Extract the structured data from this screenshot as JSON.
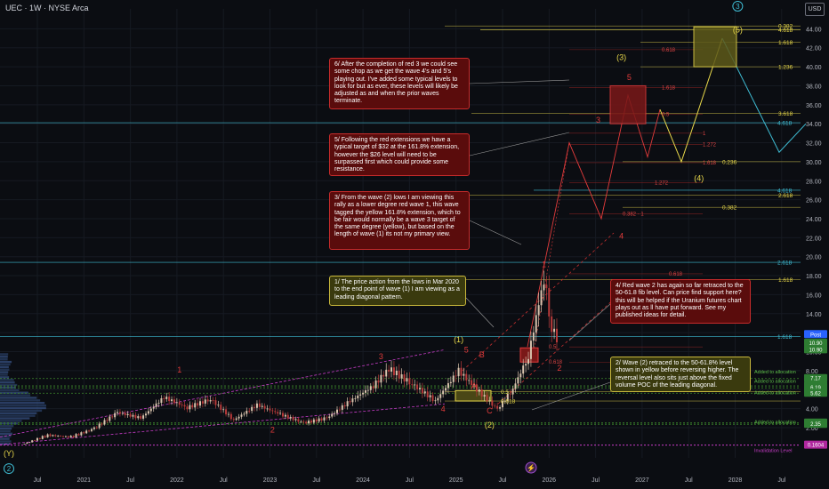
{
  "header": {
    "ticker_line": "UEC · 1W · NYSE Arca",
    "currency": "USD"
  },
  "colors": {
    "bg": "#0b0d12",
    "red": "#e23b3b",
    "yellow": "#e8d84a",
    "cyan": "#3fbdd4",
    "green": "#7fcf57",
    "magenta": "#c83cc8",
    "candle_up": "#d8c3ad",
    "candle_down": "#b83a3a"
  },
  "chart_data": {
    "type": "line",
    "x_axis_labels": [
      "Jul",
      "2021",
      "Jul",
      "2022",
      "Jul",
      "2023",
      "Jul",
      "2024",
      "Jul",
      "2025",
      "Jul",
      "2026",
      "Jul",
      "2027",
      "Jul",
      "2028",
      "Jul"
    ],
    "y_ticks": [
      2,
      4,
      6,
      8,
      10,
      12,
      14,
      16,
      18,
      20,
      22,
      24,
      26,
      28,
      30,
      32,
      34,
      36,
      38,
      40,
      42,
      44
    ],
    "ylim": [
      0,
      45
    ],
    "price_series": [
      {
        "x": "2020-03",
        "y": 0.3
      },
      {
        "x": "2020-06",
        "y": 1.2
      },
      {
        "x": "2020-09",
        "y": 1.0
      },
      {
        "x": "2020-12",
        "y": 1.9
      },
      {
        "x": "2021-03",
        "y": 3.6
      },
      {
        "x": "2021-06",
        "y": 3.0
      },
      {
        "x": "2021-09",
        "y": 5.2
      },
      {
        "x": "2021-12",
        "y": 4.1
      },
      {
        "x": "2022-03",
        "y": 5.0
      },
      {
        "x": "2022-06",
        "y": 2.8
      },
      {
        "x": "2022-09",
        "y": 4.4
      },
      {
        "x": "2022-12",
        "y": 3.4
      },
      {
        "x": "2023-03",
        "y": 2.5
      },
      {
        "x": "2023-06",
        "y": 3.0
      },
      {
        "x": "2023-09",
        "y": 4.8
      },
      {
        "x": "2023-12",
        "y": 6.4
      },
      {
        "x": "2024-02",
        "y": 8.2
      },
      {
        "x": "2024-05",
        "y": 6.6
      },
      {
        "x": "2024-08",
        "y": 4.8
      },
      {
        "x": "2024-11",
        "y": 8.0
      },
      {
        "x": "2025-01",
        "y": 6.3
      },
      {
        "x": "2025-04",
        "y": 3.9
      },
      {
        "x": "2025-06",
        "y": 6.1
      },
      {
        "x": "2025-08",
        "y": 9.5
      },
      {
        "x": "2025-10",
        "y": 17.8
      },
      {
        "x": "2025-11",
        "y": 12.5
      },
      {
        "x": "2025-12",
        "y": 10.9
      }
    ],
    "fib_labels": [
      {
        "text": "0.382",
        "y": 44.3,
        "color": "yellow"
      },
      {
        "text": "4.618",
        "y": 43.9,
        "color": "yellow"
      },
      {
        "text": "1.618",
        "y": 42.6,
        "color": "yellow"
      },
      {
        "text": "1.236",
        "y": 40.0,
        "color": "yellow"
      },
      {
        "text": "3.618",
        "y": 35.1,
        "color": "yellow"
      },
      {
        "text": "4.618",
        "y": 34.1,
        "color": "cyan"
      },
      {
        "text": "0.236",
        "y": 30.0,
        "color": "yellow"
      },
      {
        "text": "4.618",
        "y": 27.0,
        "color": "cyan"
      },
      {
        "text": "2.618",
        "y": 26.5,
        "color": "yellow"
      },
      {
        "text": "0.382",
        "y": 25.2,
        "color": "yellow"
      },
      {
        "text": "2.618",
        "y": 19.4,
        "color": "cyan"
      },
      {
        "text": "1.618",
        "y": 17.6,
        "color": "yellow"
      },
      {
        "text": "1.618",
        "y": 11.6,
        "color": "cyan"
      },
      {
        "text": "0.5",
        "y": 5.8,
        "color": "yellow"
      },
      {
        "text": "0.618",
        "y": 4.8,
        "color": "yellow"
      }
    ],
    "red_fib_labels": [
      {
        "text": "0.618",
        "y": 41.8
      },
      {
        "text": "1.618",
        "y": 37.8
      },
      {
        "text": "0.5",
        "y": 35.0
      },
      {
        "text": "1",
        "y": 33.0
      },
      {
        "text": "1.272",
        "y": 31.8
      },
      {
        "text": "1.618",
        "y": 29.9
      },
      {
        "text": "1.272",
        "y": 27.8
      },
      {
        "text": "0.382 - 1",
        "y": 24.5
      },
      {
        "text": "0.618",
        "y": 18.2
      },
      {
        "text": "0.5",
        "y": 10.5
      },
      {
        "text": "0.618",
        "y": 8.9
      }
    ],
    "wave_labels": [
      {
        "text": "1",
        "x": "2021-11",
        "y": 7.8,
        "color": "red"
      },
      {
        "text": "2",
        "x": "2022-11",
        "y": 1.5,
        "color": "red"
      },
      {
        "text": "3",
        "x": "2024-01",
        "y": 9.2,
        "color": "red"
      },
      {
        "text": "4",
        "x": "2024-09",
        "y": 3.7,
        "color": "red"
      },
      {
        "text": "5",
        "x": "2024-12",
        "y": 9.9,
        "color": "red"
      },
      {
        "text": "B",
        "x": "2025-02",
        "y": 9.4,
        "color": "red"
      },
      {
        "text": "A",
        "x": "2025-01",
        "y": 6.1,
        "color": "red"
      },
      {
        "text": "C",
        "x": "2025-03",
        "y": 3.5,
        "color": "red"
      },
      {
        "text": "1",
        "x": "2025-10",
        "y": 18.9,
        "color": "red"
      },
      {
        "text": "2",
        "x": "2025-12",
        "y": 8.0,
        "color": "red"
      },
      {
        "text": "3",
        "x": "2026-05",
        "y": 34.1,
        "color": "red"
      },
      {
        "text": "4",
        "x": "2026-08",
        "y": 21.9,
        "color": "red"
      },
      {
        "text": "5",
        "x": "2026-09",
        "y": 38.6,
        "color": "red"
      },
      {
        "text": "(1)",
        "x": "2024-11",
        "y": 11.0,
        "color": "yellow"
      },
      {
        "text": "(2)",
        "x": "2025-03",
        "y": 2.0,
        "color": "yellow"
      },
      {
        "text": "(3)",
        "x": "2026-08",
        "y": 40.7,
        "color": "yellow"
      },
      {
        "text": "(4)",
        "x": "2027-06",
        "y": 28.0,
        "color": "yellow"
      },
      {
        "text": "(5)",
        "x": "2027-11",
        "y": 43.6,
        "color": "yellow"
      },
      {
        "text": "(Y)",
        "x": "2020-01",
        "y": -1.0,
        "color": "yellow"
      }
    ],
    "circled_labels": [
      {
        "text": "2",
        "x": "2020-01",
        "y": -2.6
      },
      {
        "text": "3",
        "x": "2027-11",
        "y": 46.1
      }
    ],
    "right_axis_tags": [
      {
        "text": "Post",
        "color": "#2962ff"
      },
      {
        "text": "10.90",
        "color": "#2e7d32"
      },
      {
        "text": "10.90",
        "color": "#2e7d32"
      },
      {
        "text": "7.17",
        "color": "#2e7d32"
      },
      {
        "text": "6.39",
        "color": "#2e7d32"
      },
      {
        "text": "6.19",
        "color": "#2e7d32"
      },
      {
        "text": "5.62",
        "color": "#2e7d32"
      },
      {
        "text": "2.49",
        "color": "#2e7d32"
      },
      {
        "text": "2.35",
        "color": "#2e7d32"
      },
      {
        "text": "0.1604",
        "color": "#b0279e"
      }
    ],
    "level_labels": [
      "Added to allocation",
      "Added to allocation",
      "Added to allocation",
      "Added to allocation",
      "Invalidation Level"
    ]
  },
  "notes": {
    "n6": "6/ After the completion of red 3 we could see some chop as we get the wave 4's and 5's playing out. I've added some typical levels to look for but as ever, these levels will likely be adjusted as and when the prior waves terminate.",
    "n5": "5/ Following the red extensions we have a typical target of $32 at the 161.8% extension, however the $26 level will need to be surpassed first which could provide some resistance.",
    "n3": "3/ From the wave (2) lows I am viewing this rally as a lower degree red wave 1, this wave tagged the yellow 161.8% extension, which to be fair would normally be a wave 3 target of the same degree (yellow), but based on the length of wave (1) its not my primary view.",
    "n1": "1/ The price action from the lows in Mar 2020 to the end point of wave (1) I am viewing as a leading diagonal pattern.",
    "n4": "4/ Red wave 2 has again so far retraced to the 50-61.8 fib level. Can price find support here? this will be helped if the Uranium futures chart plays out as ll have put forward. See my published ideas for detail.",
    "n2": "2/ Wave (2) retraced to the 50-61.8% level shown in yellow before reversing higher. The reversal level also sits just above the fixed volume POC of the leading diagonal."
  }
}
